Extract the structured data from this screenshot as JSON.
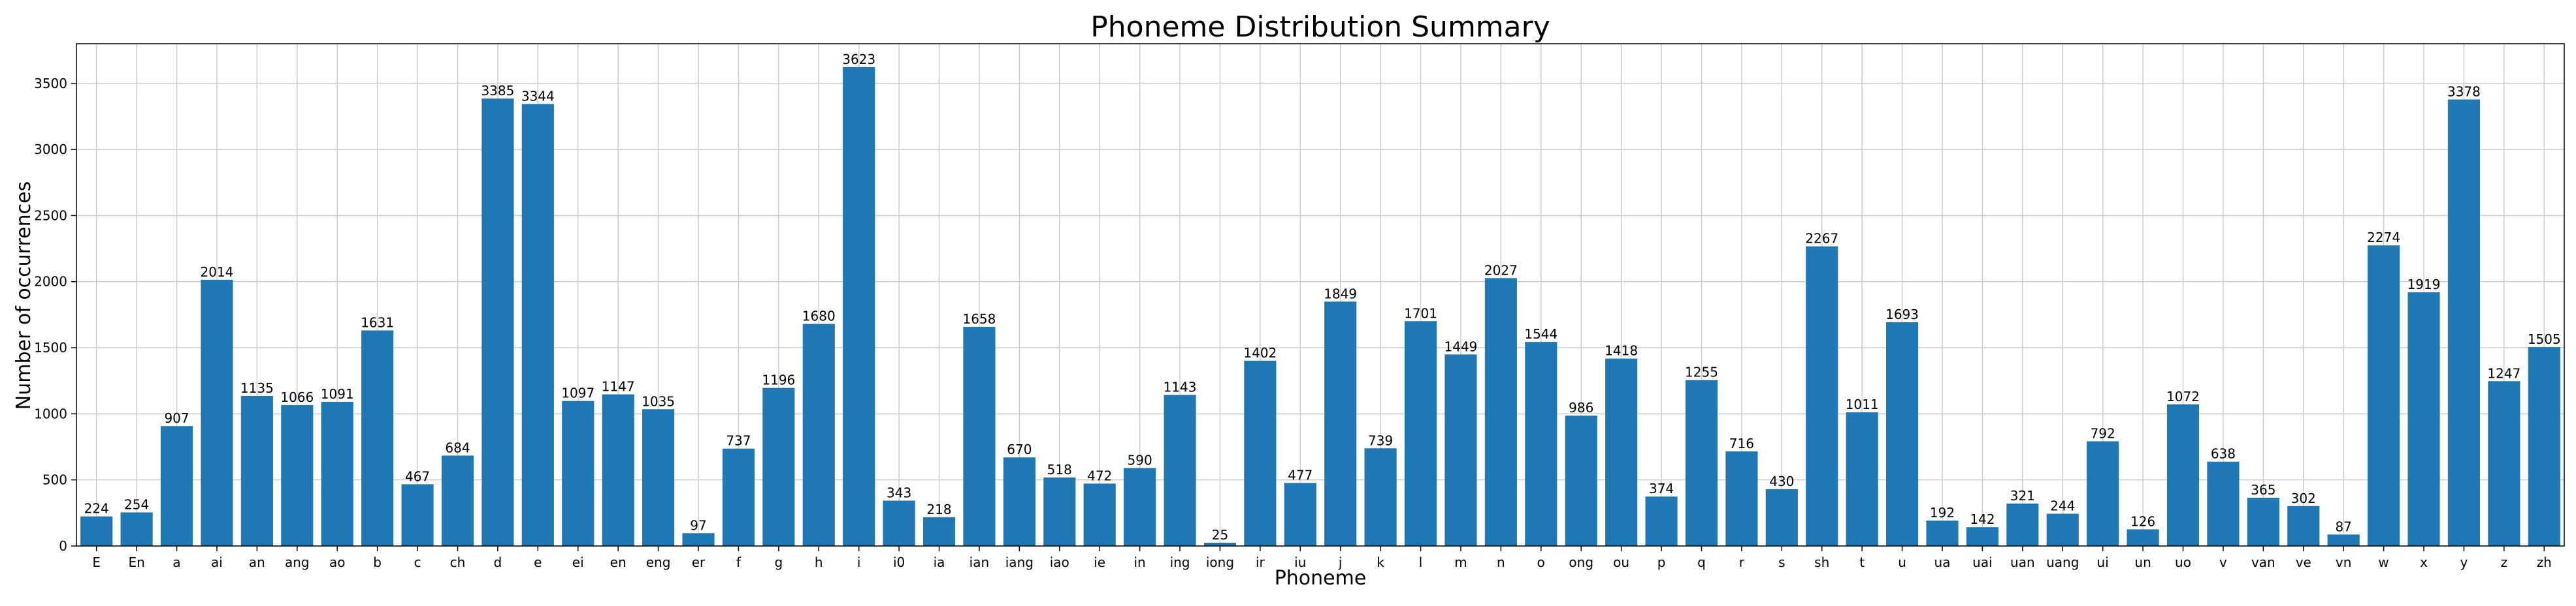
{
  "chart_data": {
    "type": "bar",
    "title": "Phoneme Distribution Summary",
    "xlabel": "Phoneme",
    "ylabel": "Number of occurrences",
    "ylim": [
      0,
      3800
    ],
    "yticks": [
      0,
      500,
      1000,
      1500,
      2000,
      2500,
      3000,
      3500
    ],
    "grid": true,
    "bar_color": "#1f77b4",
    "categories": [
      "E",
      "En",
      "a",
      "ai",
      "an",
      "ang",
      "ao",
      "b",
      "c",
      "ch",
      "d",
      "e",
      "ei",
      "en",
      "eng",
      "er",
      "f",
      "g",
      "h",
      "i",
      "i0",
      "ia",
      "ian",
      "iang",
      "iao",
      "ie",
      "in",
      "ing",
      "iong",
      "ir",
      "iu",
      "j",
      "k",
      "l",
      "m",
      "n",
      "o",
      "ong",
      "ou",
      "p",
      "q",
      "r",
      "s",
      "sh",
      "t",
      "u",
      "ua",
      "uai",
      "uan",
      "uang",
      "ui",
      "un",
      "uo",
      "v",
      "van",
      "ve",
      "vn",
      "w",
      "x",
      "y",
      "z",
      "zh"
    ],
    "values": [
      224,
      254,
      907,
      2014,
      1135,
      1066,
      1091,
      1631,
      467,
      684,
      3385,
      3344,
      1097,
      1147,
      1035,
      97,
      737,
      1196,
      1680,
      3623,
      343,
      218,
      1658,
      670,
      518,
      472,
      590,
      1143,
      25,
      1402,
      477,
      1849,
      739,
      1701,
      1449,
      2027,
      1544,
      986,
      1418,
      374,
      1255,
      716,
      430,
      2267,
      1011,
      1693,
      192,
      142,
      321,
      244,
      792,
      126,
      1072,
      638,
      365,
      302,
      87,
      2274,
      1919,
      3378,
      1247,
      1505
    ]
  }
}
